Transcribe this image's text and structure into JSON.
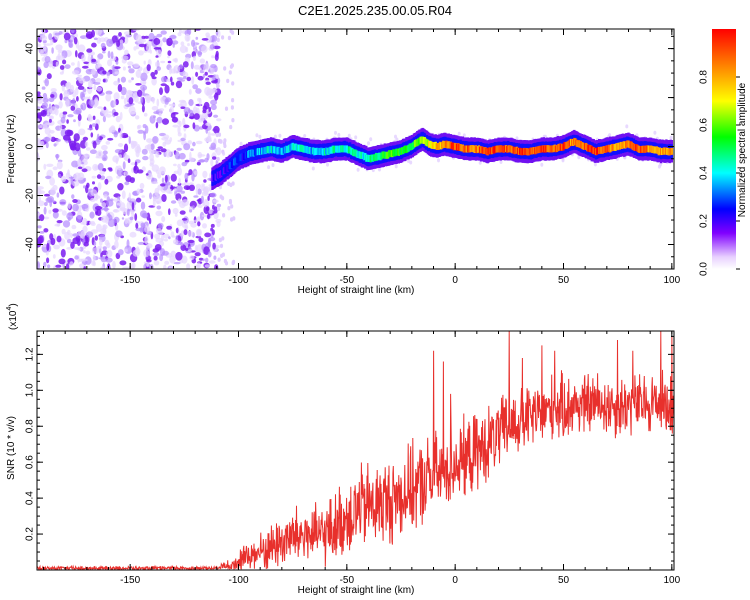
{
  "figure_title": "C2E1.2025.235.00.05.R04",
  "chart_data": [
    {
      "type": "heatmap",
      "name": "spectrogram",
      "xlabel": "Height of straight line (km)",
      "ylabel": "Frequency (Hz)",
      "xlim": [
        -193,
        101
      ],
      "ylim": [
        -50,
        48
      ],
      "xticks": [
        -150,
        -100,
        -50,
        0,
        50,
        100
      ],
      "yticks": [
        -40,
        -20,
        0,
        20,
        40
      ],
      "noise_region_x": [
        -193,
        -110
      ],
      "ridge": {
        "x": [
          -112,
          -108,
          -104,
          -100,
          -95,
          -90,
          -85,
          -80,
          -75,
          -70,
          -65,
          -60,
          -55,
          -50,
          -45,
          -40,
          -35,
          -30,
          -25,
          -20,
          -17,
          -15,
          -12,
          -8,
          -5,
          0,
          5,
          10,
          15,
          20,
          25,
          30,
          35,
          40,
          45,
          50,
          55,
          60,
          65,
          70,
          75,
          80,
          85,
          90,
          95,
          100
        ],
        "freq": [
          -13,
          -11,
          -8,
          -5,
          -3,
          -2,
          -1,
          -2,
          0,
          -1,
          -2,
          -2,
          -1,
          -1,
          -3,
          -5,
          -4,
          -3,
          -2,
          0,
          2,
          3,
          1,
          0,
          1,
          0,
          -1,
          -1,
          -2,
          -1,
          -1,
          -2,
          -2,
          -1,
          -1,
          0,
          2,
          0,
          -2,
          -1,
          0,
          1,
          -1,
          -1,
          -2,
          -2
        ],
        "amplitude": [
          0.25,
          0.25,
          0.3,
          0.3,
          0.35,
          0.4,
          0.45,
          0.4,
          0.45,
          0.45,
          0.4,
          0.45,
          0.5,
          0.5,
          0.45,
          0.5,
          0.55,
          0.6,
          0.6,
          0.6,
          0.65,
          0.7,
          0.75,
          0.8,
          0.85,
          0.95,
          0.9,
          0.9,
          0.95,
          0.95,
          0.9,
          0.95,
          0.95,
          0.95,
          0.9,
          0.95,
          0.85,
          0.95,
          0.95,
          0.9,
          0.85,
          0.9,
          0.95,
          0.85,
          0.85,
          0.85
        ]
      }
    },
    {
      "type": "colorbar",
      "name": "amplitude-colorbar",
      "label": "Normalized spectral amplitude",
      "range": [
        0,
        1
      ],
      "ticks": [
        "0.0",
        "0.2",
        "0.4",
        "0.6",
        "0.8"
      ],
      "tick_values": [
        0.0,
        0.2,
        0.4,
        0.6,
        0.8
      ],
      "colors": [
        "#ffffff",
        "#8000ff",
        "#0000ff",
        "#00ffff",
        "#00ff00",
        "#ffff00",
        "#ff8000",
        "#ff0000"
      ]
    },
    {
      "type": "line",
      "name": "snr",
      "xlabel": "Height of straight line (km)",
      "ylabel": "SNR (10 * v/v)",
      "y_multiplier_base": "(x10",
      "y_multiplier_exp": "4",
      "y_multiplier_close": ")",
      "xlim": [
        -193,
        101
      ],
      "ylim": [
        0,
        1.33
      ],
      "xticks": [
        -150,
        -100,
        -50,
        0,
        50,
        100
      ],
      "yticks": [
        0.2,
        0.4,
        0.6,
        0.8,
        1.0,
        1.2
      ],
      "ytick_labels": [
        "0.2",
        "0.4",
        "0.6",
        "0.8",
        "1.0",
        "1.2"
      ],
      "color": "#e8302c",
      "envelope": {
        "x": [
          -193,
          -110,
          -105,
          -100,
          -95,
          -90,
          -85,
          -80,
          -75,
          -70,
          -65,
          -60,
          -55,
          -50,
          -45,
          -40,
          -35,
          -30,
          -25,
          -20,
          -15,
          -10,
          -5,
          0,
          5,
          10,
          15,
          20,
          25,
          30,
          35,
          40,
          45,
          50,
          55,
          60,
          65,
          70,
          75,
          80,
          85,
          90,
          95,
          100
        ],
        "mean": [
          0.01,
          0.01,
          0.03,
          0.05,
          0.08,
          0.1,
          0.13,
          0.16,
          0.18,
          0.2,
          0.19,
          0.2,
          0.24,
          0.3,
          0.34,
          0.36,
          0.37,
          0.38,
          0.42,
          0.45,
          0.48,
          0.52,
          0.55,
          0.6,
          0.62,
          0.65,
          0.7,
          0.75,
          0.8,
          0.82,
          0.85,
          0.87,
          0.9,
          0.9,
          0.92,
          0.92,
          0.93,
          0.92,
          0.91,
          0.92,
          0.92,
          0.93,
          0.93,
          0.92
        ],
        "spread": [
          0.01,
          0.01,
          0.03,
          0.05,
          0.08,
          0.1,
          0.12,
          0.14,
          0.15,
          0.16,
          0.15,
          0.16,
          0.18,
          0.2,
          0.22,
          0.22,
          0.22,
          0.22,
          0.22,
          0.22,
          0.22,
          0.22,
          0.2,
          0.2,
          0.2,
          0.2,
          0.19,
          0.18,
          0.18,
          0.17,
          0.17,
          0.17,
          0.17,
          0.17,
          0.16,
          0.16,
          0.16,
          0.16,
          0.16,
          0.16,
          0.16,
          0.16,
          0.16,
          0.16
        ]
      },
      "spikes": [
        [
          -10,
          1.22
        ],
        [
          -5.5,
          1.16
        ],
        [
          -2,
          0.98
        ],
        [
          25,
          1.33
        ],
        [
          31,
          1.18
        ],
        [
          40,
          1.25
        ],
        [
          46,
          1.22
        ],
        [
          75,
          1.28
        ],
        [
          82,
          1.22
        ],
        [
          95,
          1.33
        ],
        [
          100,
          1.3
        ]
      ]
    }
  ]
}
